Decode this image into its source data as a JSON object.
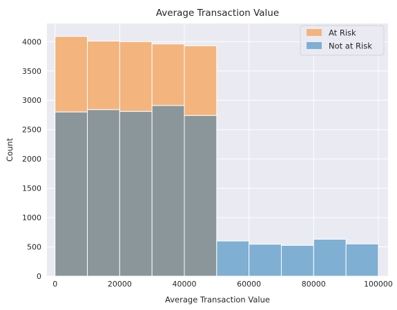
{
  "chart_data": {
    "type": "bar",
    "title": "Average Transaction Value",
    "xlabel": "Average Transaction Value",
    "ylabel": "Count",
    "xlim": [
      -2500,
      103000
    ],
    "ylim": [
      0,
      4310
    ],
    "xticks": [
      0,
      20000,
      40000,
      60000,
      80000,
      100000
    ],
    "xtick_labels": [
      "0",
      "20000",
      "40000",
      "60000",
      "80000",
      "100000"
    ],
    "yticks": [
      0,
      500,
      1000,
      1500,
      2000,
      2500,
      3000,
      3500,
      4000
    ],
    "ytick_labels": [
      "0",
      "500",
      "1000",
      "1500",
      "2000",
      "2500",
      "3000",
      "3500",
      "4000"
    ],
    "bin_edges": [
      0,
      10000,
      20000,
      30000,
      40000,
      50000,
      60000,
      70000,
      80000,
      90000,
      100000
    ],
    "series": [
      {
        "name": "At Risk",
        "color": "#f4b47e",
        "values": [
          4090,
          4010,
          4000,
          3960,
          3930,
          0,
          0,
          0,
          0,
          0
        ]
      },
      {
        "name": "Not at Risk",
        "color": "#7fafd2",
        "values": [
          2800,
          2840,
          2810,
          2910,
          2740,
          600,
          545,
          525,
          630,
          550
        ]
      }
    ],
    "overlap_color": "#8a9699",
    "grid": true,
    "background": "#eaeaf2",
    "legend_position": "top-right"
  }
}
